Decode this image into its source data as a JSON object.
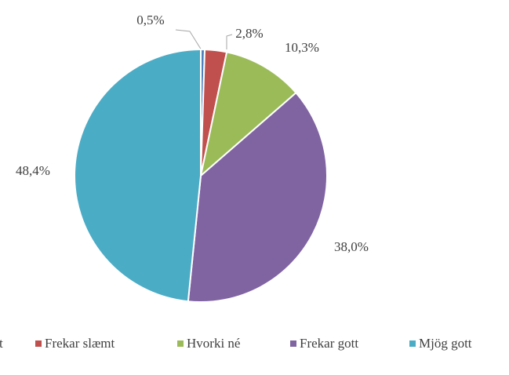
{
  "chart_data": {
    "type": "pie",
    "categories": [
      "Mjög slæmt",
      "Frekar slæmt",
      "Hvorki né",
      "Frekar gott",
      "Mjög gott"
    ],
    "values": [
      0.5,
      2.8,
      10.3,
      38.0,
      48.4
    ],
    "value_labels": [
      "0,5%",
      "2,8%",
      "10,3%",
      "38,0%",
      "48,4%"
    ],
    "colors": [
      "#4f81bd",
      "#c0504d",
      "#9bbb59",
      "#8064a2",
      "#4bacc6"
    ],
    "legend": "bottom"
  }
}
